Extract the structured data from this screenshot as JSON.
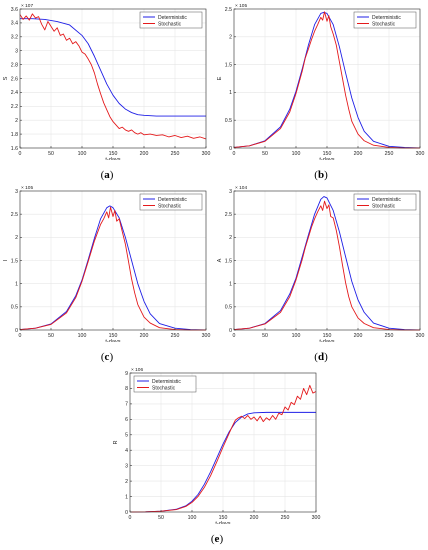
{
  "figure": {
    "legend": {
      "deterministic": "Deterministic",
      "stochastic": "Stochastic"
    },
    "colors": {
      "deterministic": "#1f1fe6",
      "stochastic": "#e41a1c",
      "grid": "#e6e6e6",
      "axis": "#333333"
    }
  },
  "chart_data": [
    {
      "id": "a",
      "caption": "(a)",
      "type": "line",
      "ylabel": "S",
      "xlabel": "t-days",
      "exponent": "× 10^7",
      "xlim": [
        0,
        300
      ],
      "ylim": [
        1.6,
        3.6
      ],
      "xticks": [
        0,
        50,
        100,
        150,
        200,
        250,
        300
      ],
      "yticks": [
        1.6,
        1.8,
        2,
        2.2,
        2.4,
        2.6,
        2.8,
        3,
        3.2,
        3.4,
        3.6
      ],
      "ytick_labels": [
        "1.6",
        "1.8",
        "2",
        "2.2",
        "2.4",
        "2.6",
        "2.8",
        "3",
        "3.2",
        "3.4",
        "3.6"
      ],
      "grid": true,
      "legend_position": "top-right",
      "series": [
        {
          "name": "Deterministic",
          "x": [
            0,
            20,
            40,
            60,
            80,
            100,
            110,
            120,
            130,
            140,
            150,
            160,
            170,
            180,
            190,
            200,
            220,
            240,
            260,
            280,
            300
          ],
          "y": [
            3.46,
            3.46,
            3.45,
            3.42,
            3.37,
            3.22,
            3.1,
            2.92,
            2.72,
            2.52,
            2.36,
            2.24,
            2.16,
            2.11,
            2.08,
            2.07,
            2.06,
            2.06,
            2.06,
            2.06,
            2.06
          ]
        },
        {
          "name": "Stochastic",
          "x": [
            0,
            5,
            10,
            15,
            20,
            25,
            30,
            35,
            40,
            45,
            50,
            55,
            60,
            65,
            70,
            75,
            80,
            85,
            90,
            95,
            100,
            105,
            110,
            115,
            120,
            125,
            130,
            135,
            140,
            145,
            150,
            155,
            160,
            165,
            170,
            175,
            180,
            185,
            190,
            195,
            200,
            210,
            220,
            230,
            240,
            250,
            260,
            270,
            280,
            290,
            300
          ],
          "y": [
            3.52,
            3.45,
            3.5,
            3.44,
            3.53,
            3.47,
            3.49,
            3.38,
            3.3,
            3.42,
            3.35,
            3.28,
            3.33,
            3.22,
            3.24,
            3.15,
            3.18,
            3.1,
            3.13,
            3.07,
            2.98,
            2.95,
            2.88,
            2.8,
            2.68,
            2.52,
            2.38,
            2.25,
            2.15,
            2.05,
            1.98,
            1.93,
            1.88,
            1.9,
            1.86,
            1.84,
            1.86,
            1.82,
            1.8,
            1.82,
            1.79,
            1.8,
            1.78,
            1.79,
            1.76,
            1.78,
            1.75,
            1.77,
            1.74,
            1.76,
            1.73
          ]
        }
      ]
    },
    {
      "id": "b",
      "caption": "(b)",
      "type": "line",
      "ylabel": "E",
      "xlabel": "t-days",
      "exponent": "× 10^5",
      "xlim": [
        0,
        300
      ],
      "ylim": [
        0,
        2.5
      ],
      "xticks": [
        0,
        50,
        100,
        150,
        200,
        250,
        300
      ],
      "yticks": [
        0,
        0.5,
        1,
        1.5,
        2,
        2.5
      ],
      "ytick_labels": [
        "0",
        "0.5",
        "1",
        "1.5",
        "2",
        "2.5"
      ],
      "grid": true,
      "legend_position": "top-right",
      "series": [
        {
          "name": "Deterministic",
          "x": [
            0,
            25,
            50,
            75,
            90,
            100,
            110,
            120,
            130,
            140,
            145,
            150,
            160,
            170,
            180,
            190,
            200,
            210,
            225,
            250,
            275,
            300
          ],
          "y": [
            0.01,
            0.04,
            0.13,
            0.38,
            0.7,
            1.02,
            1.42,
            1.85,
            2.22,
            2.42,
            2.44,
            2.42,
            2.22,
            1.82,
            1.35,
            0.9,
            0.55,
            0.3,
            0.12,
            0.03,
            0.01,
            0.0
          ]
        },
        {
          "name": "Stochastic",
          "x": [
            0,
            25,
            50,
            75,
            90,
            100,
            110,
            115,
            120,
            125,
            130,
            135,
            140,
            143,
            146,
            150,
            153,
            156,
            160,
            165,
            170,
            175,
            180,
            185,
            190,
            200,
            210,
            225,
            250,
            275,
            300
          ],
          "y": [
            0.01,
            0.04,
            0.12,
            0.35,
            0.65,
            0.98,
            1.38,
            1.62,
            1.78,
            1.95,
            2.1,
            2.22,
            2.35,
            2.3,
            2.45,
            2.28,
            2.38,
            2.18,
            2.05,
            1.85,
            1.55,
            1.25,
            0.95,
            0.7,
            0.48,
            0.25,
            0.13,
            0.05,
            0.01,
            0.0,
            0.0
          ]
        }
      ]
    },
    {
      "id": "c",
      "caption": "(c)",
      "type": "line",
      "ylabel": "I",
      "xlabel": "t-days",
      "exponent": "× 10^5",
      "xlim": [
        0,
        300
      ],
      "ylim": [
        0,
        3
      ],
      "xticks": [
        0,
        50,
        100,
        150,
        200,
        250,
        300
      ],
      "yticks": [
        0,
        0.5,
        1,
        1.5,
        2,
        2.5,
        3
      ],
      "ytick_labels": [
        "0",
        "0.5",
        "1",
        "1.5",
        "2",
        "2.5",
        "3"
      ],
      "grid": true,
      "legend_position": "top-right",
      "series": [
        {
          "name": "Deterministic",
          "x": [
            0,
            25,
            50,
            75,
            90,
            100,
            110,
            120,
            130,
            140,
            145,
            150,
            160,
            170,
            180,
            190,
            200,
            210,
            225,
            250,
            275,
            300
          ],
          "y": [
            0.01,
            0.04,
            0.13,
            0.4,
            0.74,
            1.08,
            1.52,
            1.98,
            2.4,
            2.64,
            2.68,
            2.64,
            2.42,
            2.0,
            1.5,
            1.0,
            0.62,
            0.35,
            0.14,
            0.04,
            0.01,
            0.0
          ]
        },
        {
          "name": "Stochastic",
          "x": [
            0,
            25,
            50,
            75,
            90,
            100,
            110,
            115,
            120,
            125,
            130,
            135,
            140,
            143,
            146,
            150,
            153,
            156,
            160,
            165,
            170,
            175,
            180,
            185,
            190,
            200,
            210,
            225,
            250,
            275,
            300
          ],
          "y": [
            0.01,
            0.04,
            0.12,
            0.37,
            0.7,
            1.05,
            1.48,
            1.7,
            1.92,
            2.1,
            2.28,
            2.4,
            2.55,
            2.42,
            2.65,
            2.45,
            2.58,
            2.35,
            2.4,
            2.12,
            1.85,
            1.48,
            1.1,
            0.8,
            0.55,
            0.28,
            0.15,
            0.05,
            0.01,
            0.0,
            0.0
          ]
        }
      ]
    },
    {
      "id": "d",
      "caption": "(d)",
      "type": "line",
      "ylabel": "A",
      "xlabel": "t-days",
      "exponent": "× 10^4",
      "xlim": [
        0,
        300
      ],
      "ylim": [
        0,
        3
      ],
      "xticks": [
        0,
        50,
        100,
        150,
        200,
        250,
        300
      ],
      "yticks": [
        0,
        0.5,
        1,
        1.5,
        2,
        2.5,
        3
      ],
      "ytick_labels": [
        "0",
        "0.5",
        "1",
        "1.5",
        "2",
        "2.5",
        "3"
      ],
      "grid": true,
      "legend_position": "top-right",
      "series": [
        {
          "name": "Deterministic",
          "x": [
            0,
            25,
            50,
            75,
            90,
            100,
            110,
            120,
            130,
            140,
            145,
            150,
            160,
            170,
            180,
            190,
            200,
            210,
            225,
            250,
            275,
            300
          ],
          "y": [
            0.01,
            0.04,
            0.14,
            0.42,
            0.78,
            1.12,
            1.58,
            2.05,
            2.5,
            2.82,
            2.88,
            2.85,
            2.58,
            2.12,
            1.58,
            1.05,
            0.65,
            0.38,
            0.15,
            0.04,
            0.01,
            0.0
          ]
        },
        {
          "name": "Stochastic",
          "x": [
            0,
            25,
            50,
            75,
            90,
            100,
            110,
            115,
            120,
            125,
            130,
            135,
            140,
            143,
            146,
            150,
            153,
            156,
            160,
            165,
            170,
            175,
            180,
            185,
            190,
            200,
            210,
            225,
            250,
            275,
            300
          ],
          "y": [
            0.01,
            0.04,
            0.13,
            0.38,
            0.72,
            1.08,
            1.52,
            1.78,
            2.0,
            2.22,
            2.4,
            2.55,
            2.68,
            2.58,
            2.78,
            2.62,
            2.7,
            2.45,
            2.42,
            2.15,
            1.8,
            1.4,
            1.02,
            0.72,
            0.5,
            0.26,
            0.14,
            0.05,
            0.01,
            0.0,
            0.0
          ]
        }
      ]
    },
    {
      "id": "e",
      "caption": "(e)",
      "type": "line",
      "ylabel": "R",
      "xlabel": "t-days",
      "exponent": "× 10^6",
      "xlim": [
        0,
        300
      ],
      "ylim": [
        0,
        9
      ],
      "xticks": [
        0,
        50,
        100,
        150,
        200,
        250,
        300
      ],
      "yticks": [
        0,
        1,
        2,
        3,
        4,
        5,
        6,
        7,
        8,
        9
      ],
      "ytick_labels": [
        "0",
        "1",
        "2",
        "3",
        "4",
        "5",
        "6",
        "7",
        "8",
        "9"
      ],
      "grid": true,
      "legend_position": "top-left",
      "series": [
        {
          "name": "Deterministic",
          "x": [
            0,
            25,
            50,
            75,
            90,
            100,
            110,
            120,
            130,
            140,
            150,
            160,
            170,
            180,
            190,
            200,
            220,
            240,
            260,
            280,
            300
          ],
          "y": [
            0.0,
            0.01,
            0.05,
            0.18,
            0.4,
            0.7,
            1.15,
            1.8,
            2.6,
            3.5,
            4.4,
            5.2,
            5.8,
            6.15,
            6.35,
            6.42,
            6.45,
            6.45,
            6.45,
            6.45,
            6.45
          ]
        },
        {
          "name": "Stochastic",
          "x": [
            0,
            25,
            50,
            75,
            90,
            100,
            110,
            120,
            130,
            140,
            150,
            160,
            165,
            170,
            175,
            180,
            185,
            190,
            195,
            200,
            205,
            210,
            215,
            220,
            225,
            230,
            235,
            240,
            245,
            250,
            255,
            260,
            265,
            270,
            275,
            280,
            285,
            290,
            295,
            300
          ],
          "y": [
            0.0,
            0.01,
            0.05,
            0.16,
            0.36,
            0.62,
            1.02,
            1.6,
            2.35,
            3.25,
            4.2,
            5.1,
            5.55,
            5.95,
            6.1,
            6.2,
            6.05,
            6.25,
            6.0,
            6.15,
            5.9,
            6.2,
            5.85,
            6.1,
            5.95,
            6.25,
            6.0,
            6.4,
            6.3,
            6.8,
            6.6,
            7.1,
            6.95,
            7.5,
            7.3,
            8.0,
            7.6,
            8.2,
            7.7,
            7.8
          ]
        }
      ]
    }
  ]
}
